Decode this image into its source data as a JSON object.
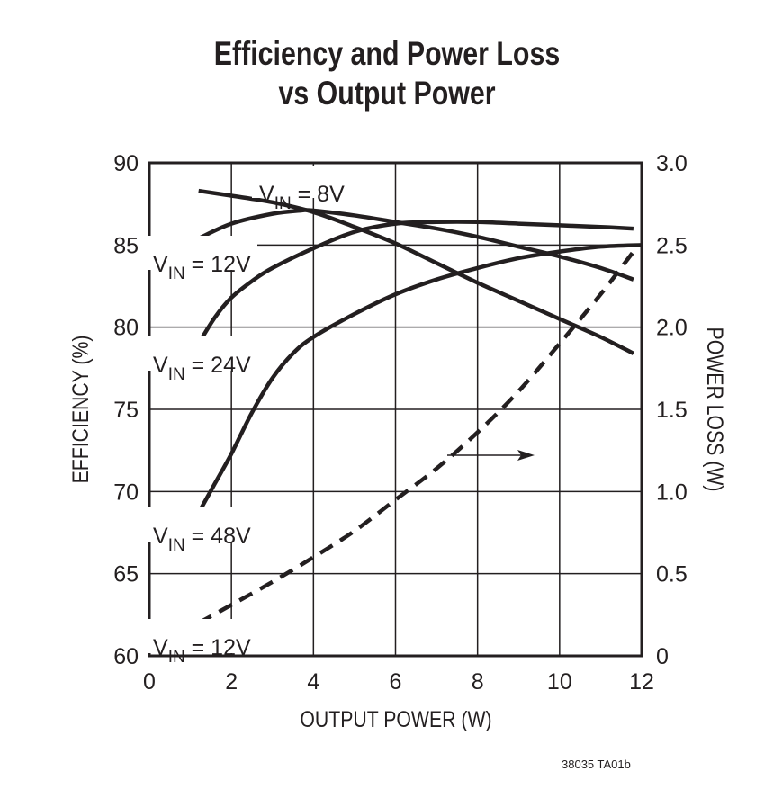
{
  "chart_data": {
    "type": "line",
    "title": [
      "Efficiency and Power Loss",
      "vs Output Power"
    ],
    "xlabel": "OUTPUT POWER (W)",
    "ylabel": "EFFICIENCY (%)",
    "y2label": "POWER LOSS (W)",
    "xlim": [
      0,
      12
    ],
    "ylim": [
      60,
      90
    ],
    "y2lim": [
      0,
      3.0
    ],
    "xticks": [
      "0",
      "2",
      "4",
      "6",
      "8",
      "10",
      "12"
    ],
    "yticks": [
      "60",
      "65",
      "70",
      "75",
      "80",
      "85",
      "90"
    ],
    "y2ticks": [
      "0",
      "0.5",
      "1.0",
      "1.5",
      "2.0",
      "2.5",
      "3.0"
    ],
    "grid": true,
    "line_color": "#231f20",
    "series": [
      {
        "name": {
          "main": "V",
          "sub": "IN",
          "rest": " = 8V"
        },
        "axis": "left",
        "style": "solid",
        "x": [
          1.2,
          2,
          3,
          4,
          5,
          6,
          7,
          8,
          9,
          10,
          11,
          11.8
        ],
        "y": [
          88.3,
          88.0,
          87.6,
          87.0,
          86.1,
          85.1,
          83.9,
          82.7,
          81.6,
          80.5,
          79.4,
          78.4
        ]
      },
      {
        "name": {
          "main": "V",
          "sub": "IN",
          "rest": " = 12V"
        },
        "axis": "left",
        "style": "solid",
        "x": [
          1.2,
          2,
          3,
          3.7,
          4,
          5,
          6,
          7,
          8,
          9,
          10,
          11,
          11.8
        ],
        "y": [
          85.4,
          86.3,
          86.9,
          87.1,
          87.1,
          86.8,
          86.4,
          86.0,
          85.5,
          84.9,
          84.3,
          83.6,
          82.9
        ]
      },
      {
        "name": {
          "main": "V",
          "sub": "IN",
          "rest": " = 24V"
        },
        "axis": "left",
        "style": "solid",
        "x": [
          1.2,
          1.6,
          2,
          2.5,
          3,
          4,
          5,
          6,
          7,
          8,
          9,
          10,
          11,
          11.8
        ],
        "y": [
          79.0,
          80.6,
          81.8,
          82.8,
          83.6,
          84.8,
          85.8,
          86.3,
          86.4,
          86.4,
          86.3,
          86.2,
          86.1,
          86.0
        ]
      },
      {
        "name": {
          "main": "V",
          "sub": "IN",
          "rest": " = 48V"
        },
        "axis": "left",
        "style": "solid",
        "x": [
          1.2,
          1.6,
          2,
          2.5,
          3,
          3.5,
          4,
          5,
          6,
          7,
          8,
          9,
          10,
          11,
          12
        ],
        "y": [
          68.7,
          70.5,
          72.3,
          74.8,
          76.9,
          78.4,
          79.4,
          80.8,
          82.0,
          82.9,
          83.6,
          84.2,
          84.6,
          84.9,
          85.0
        ]
      },
      {
        "name": {
          "main": "V",
          "sub": "IN",
          "rest": " = 12V"
        },
        "axis": "right",
        "style": "dashed",
        "x": [
          1.2,
          2,
          3,
          4,
          5,
          6,
          7,
          8,
          9,
          10,
          11,
          11.8
        ],
        "y": [
          0.2,
          0.31,
          0.45,
          0.6,
          0.76,
          0.95,
          1.14,
          1.36,
          1.61,
          1.9,
          2.2,
          2.46
        ]
      }
    ],
    "annotations": [
      {
        "type": "arrow",
        "direction": "right",
        "points_to": "right-axis"
      }
    ]
  },
  "footnote": "38035 TA01b"
}
